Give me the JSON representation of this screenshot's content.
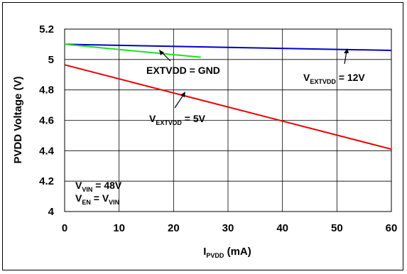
{
  "chart_data": {
    "type": "line",
    "title": "",
    "xlabel_main": "I",
    "xlabel_sub": "PVDD",
    "xlabel_unit": " (mA)",
    "ylabel": "PVDD Voltage (V)",
    "xlim": [
      0,
      60
    ],
    "ylim": [
      4,
      5.2
    ],
    "x_ticks": [
      "0",
      "10",
      "20",
      "30",
      "40",
      "50",
      "60"
    ],
    "y_ticks": [
      "4",
      "4.2",
      "4.4",
      "4.6",
      "4.8",
      "5",
      "5.2"
    ],
    "grid": true,
    "series": [
      {
        "key": "ext12",
        "color": "#0000cc",
        "x": [
          0,
          60
        ],
        "y": [
          5.1,
          5.06
        ]
      },
      {
        "key": "gnd",
        "color": "#22dd22",
        "x": [
          0,
          25
        ],
        "y": [
          5.1,
          5.015
        ]
      },
      {
        "key": "ext5",
        "color": "#ee0000",
        "x": [
          0,
          60
        ],
        "y": [
          4.965,
          4.41
        ]
      }
    ],
    "annotations": {
      "gnd": {
        "text": "EXTVDD = GND"
      },
      "ext12": {
        "main": "V",
        "sub": "EXTVDD",
        "rest": " = 12V"
      },
      "ext5": {
        "main": "V",
        "sub": "EXTVDD",
        "rest": " = 5V"
      },
      "vin": {
        "main": "V",
        "sub": "VIN",
        "rest": " = 48V"
      },
      "ven": {
        "main": "V",
        "sub": "EN",
        "rest": " = V",
        "sub2": "VIN"
      }
    }
  }
}
